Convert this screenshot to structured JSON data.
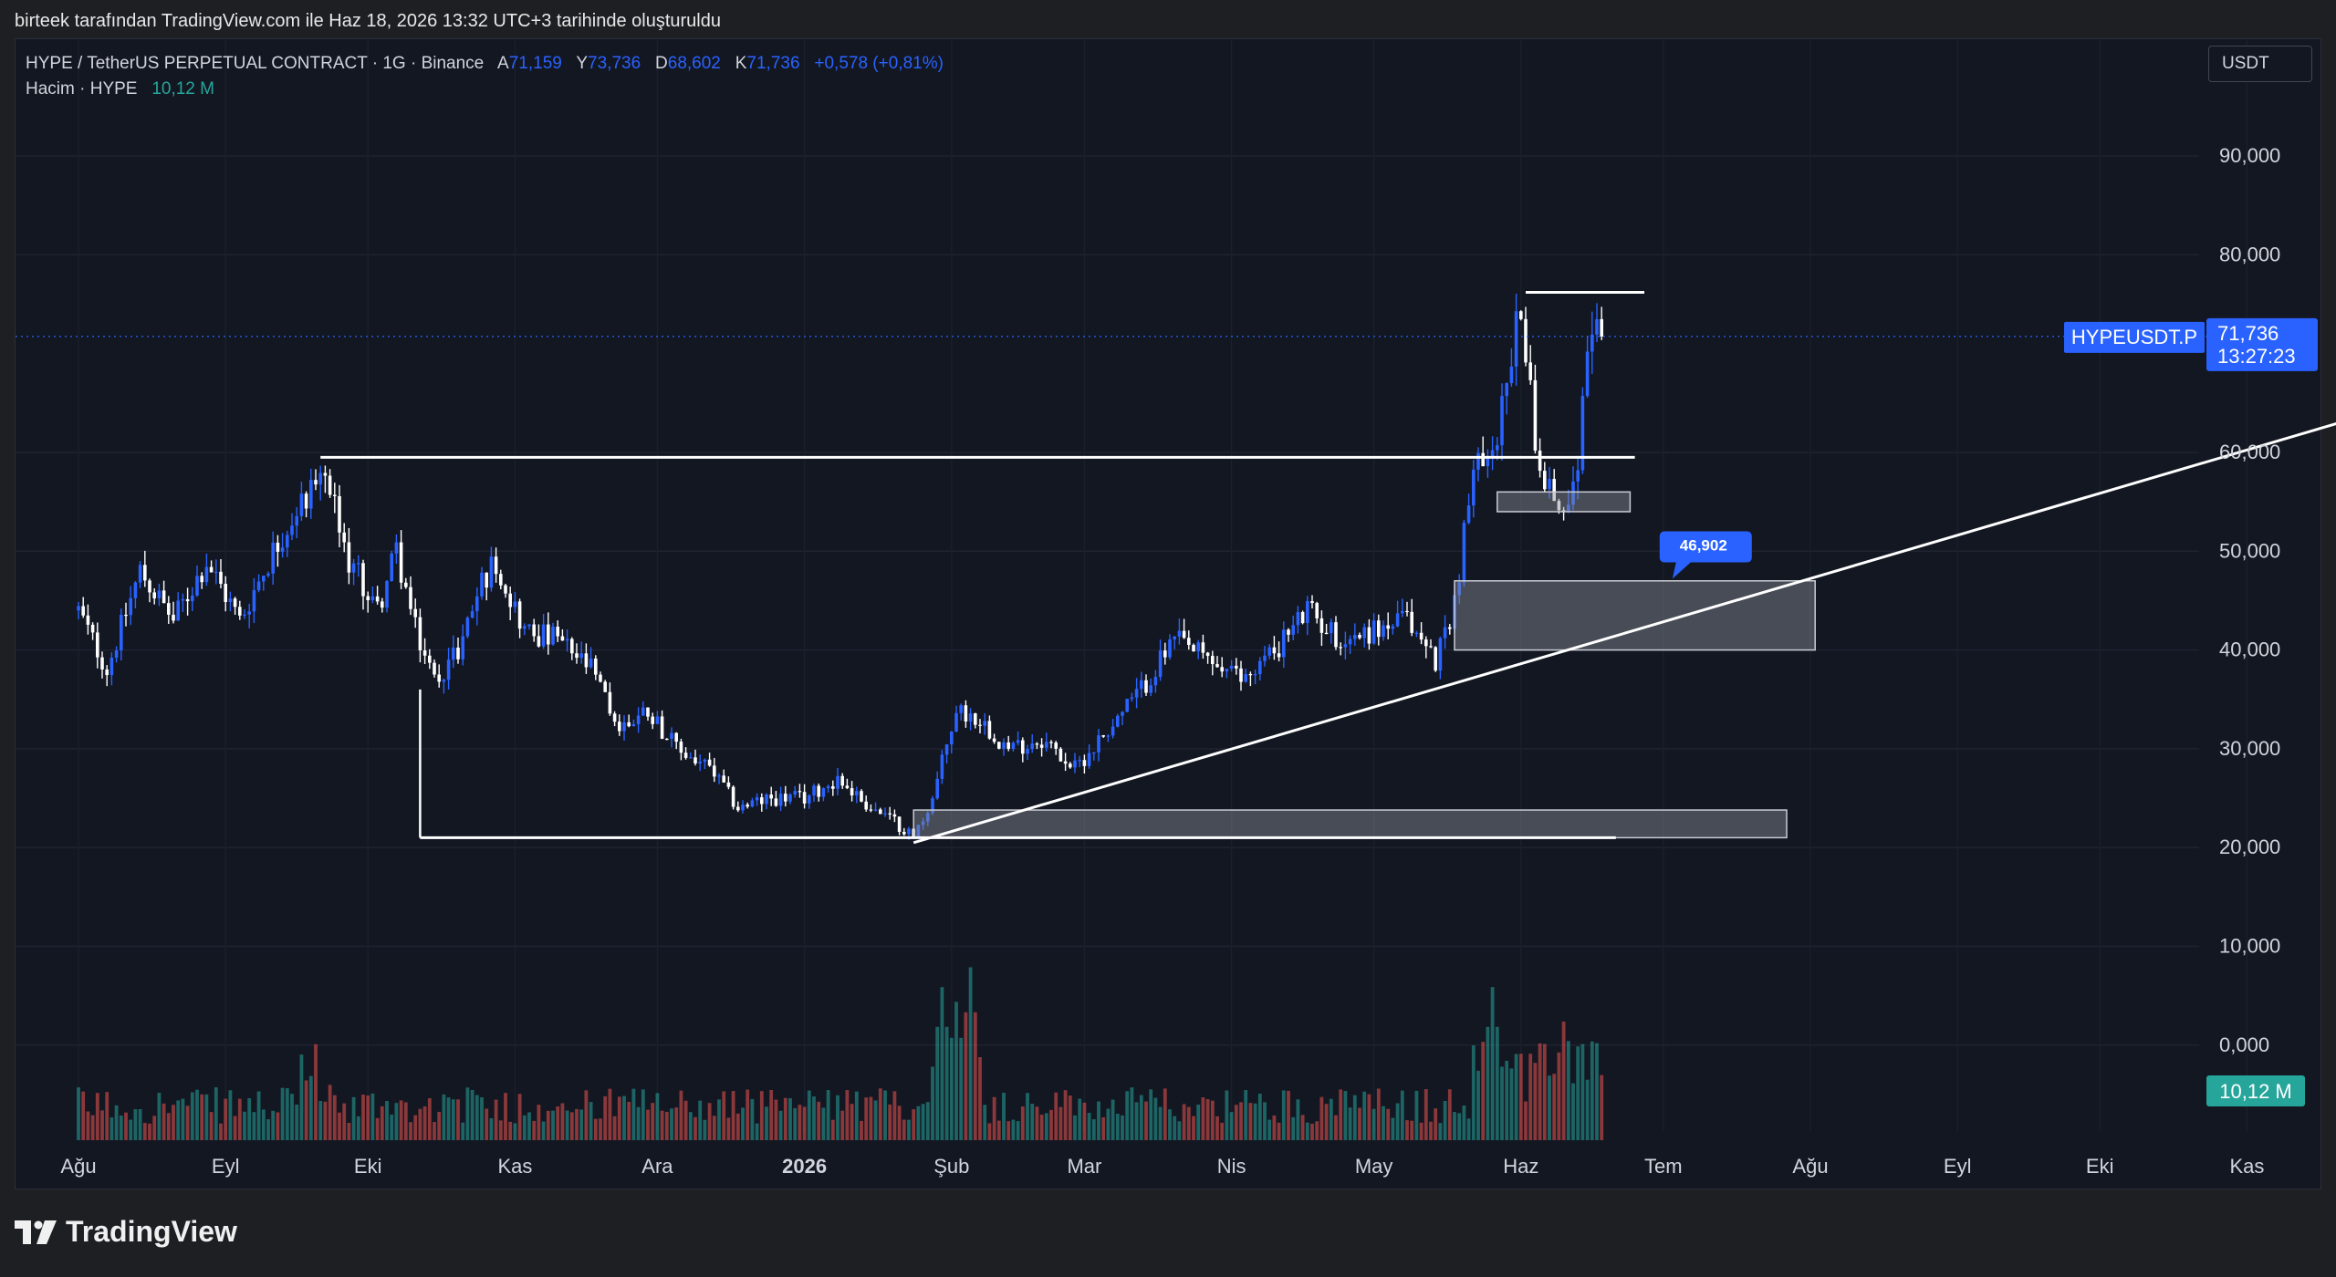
{
  "caption": "birteek tarafından TradingView.com ile Haz 18, 2026 13:32 UTC+3 tarihinde oluşturuldu",
  "legend": {
    "symbol": "HYPE / TetherUS PERPETUAL CONTRACT · 1G · Binance",
    "open_label": "A",
    "open": "71,159",
    "high_label": "Y",
    "high": "73,736",
    "low_label": "D",
    "low": "68,602",
    "close_label": "K",
    "close": "71,736",
    "change": "+0,578 (+0,81%)",
    "volume_label": "Hacim · HYPE",
    "volume": "10,12 M"
  },
  "currency_button": "USDT",
  "price_tag": {
    "symbol": "HYPEUSDT.P",
    "price": "71,736",
    "countdown": "13:27:23"
  },
  "volume_tag": "10,12 M",
  "annotation_label": "46,902",
  "brand": "TradingView",
  "colors": {
    "background": "#131722",
    "up": "#2962ff",
    "down": "#ffffff",
    "vol_up": "#26a69a",
    "vol_down": "#ef5350",
    "accent": "#2962ff"
  },
  "chart_data": {
    "type": "candlestick",
    "y_ticks": [
      "90,000",
      "80,000",
      "60,000",
      "50,000",
      "40,000",
      "30,000",
      "20,000",
      "10,000",
      "0,000"
    ],
    "x_ticks": [
      "Ağu",
      "Eyl",
      "Eki",
      "Kas",
      "Ara",
      "2026",
      "Şub",
      "Mar",
      "Nis",
      "May",
      "Haz",
      "Tem",
      "Ağu",
      "Eyl",
      "Eki",
      "Kas"
    ],
    "ylim": [
      0,
      100
    ],
    "grid": true,
    "last_price": 71.736,
    "price_path": [
      [
        "2025-08-01",
        44
      ],
      [
        "2025-08-07",
        38
      ],
      [
        "2025-08-14",
        48
      ],
      [
        "2025-08-21",
        43
      ],
      [
        "2025-08-28",
        49
      ],
      [
        "2025-09-04",
        43
      ],
      [
        "2025-09-11",
        50
      ],
      [
        "2025-09-18",
        56
      ],
      [
        "2025-09-22",
        58
      ],
      [
        "2025-09-26",
        50
      ],
      [
        "2025-10-03",
        44
      ],
      [
        "2025-10-07",
        50
      ],
      [
        "2025-10-11",
        42
      ],
      [
        "2025-10-15",
        37
      ],
      [
        "2025-10-20",
        40
      ],
      [
        "2025-10-25",
        47
      ],
      [
        "2025-10-28",
        49
      ],
      [
        "2025-11-03",
        42
      ],
      [
        "2025-11-10",
        41
      ],
      [
        "2025-11-17",
        38
      ],
      [
        "2025-11-23",
        32
      ],
      [
        "2025-11-29",
        34
      ],
      [
        "2025-12-05",
        30
      ],
      [
        "2025-12-12",
        28
      ],
      [
        "2025-12-18",
        24
      ],
      [
        "2025-12-25",
        25
      ],
      [
        "2026-01-01",
        25
      ],
      [
        "2026-01-08",
        27
      ],
      [
        "2026-01-15",
        24
      ],
      [
        "2026-01-22",
        22
      ],
      [
        "2026-01-24",
        21
      ],
      [
        "2026-01-28",
        25
      ],
      [
        "2026-02-02",
        34
      ],
      [
        "2026-02-07",
        33
      ],
      [
        "2026-02-13",
        30
      ],
      [
        "2026-02-20",
        31
      ],
      [
        "2026-02-27",
        28
      ],
      [
        "2026-03-06",
        32
      ],
      [
        "2026-03-13",
        36
      ],
      [
        "2026-03-20",
        41
      ],
      [
        "2026-03-27",
        39
      ],
      [
        "2026-04-03",
        37
      ],
      [
        "2026-04-10",
        40
      ],
      [
        "2026-04-17",
        44
      ],
      [
        "2026-04-24",
        41
      ],
      [
        "2026-05-01",
        42
      ],
      [
        "2026-05-08",
        43
      ],
      [
        "2026-05-14",
        39
      ],
      [
        "2026-05-18",
        45
      ],
      [
        "2026-05-22",
        58
      ],
      [
        "2026-05-27",
        62
      ],
      [
        "2026-06-01",
        75
      ],
      [
        "2026-06-04",
        62
      ],
      [
        "2026-06-07",
        56
      ],
      [
        "2026-06-10",
        54
      ],
      [
        "2026-06-13",
        60
      ],
      [
        "2026-06-16",
        73
      ],
      [
        "2026-06-18",
        71.7
      ]
    ],
    "volume_spikes": [
      [
        "2026-01-30",
        15.5
      ],
      [
        "2026-02-02",
        14
      ],
      [
        "2026-02-05",
        17.5
      ],
      [
        "2026-05-26",
        15.5
      ],
      [
        "2026-06-10",
        12
      ],
      [
        "2026-06-16",
        3.5
      ]
    ],
    "drawings": {
      "horizontal_lines": [
        {
          "from": "2025-09-21",
          "to": "2026-06-25",
          "y": 59.5
        },
        {
          "from": "2025-10-12",
          "to": "2026-06-21",
          "y": 21
        },
        {
          "from": "2026-06-02",
          "to": "2026-06-27",
          "y": 76.2
        }
      ],
      "trendline": {
        "from": [
          "2026-01-24",
          20.5
        ],
        "to": [
          "2026-11-24",
          63.5
        ]
      },
      "zones": [
        {
          "from": "2026-01-24",
          "to": "2026-07-27",
          "y_low": 21,
          "y_high": 23.8
        },
        {
          "from": "2026-05-27",
          "to": "2026-06-24",
          "y_low": 54,
          "y_high": 56
        },
        {
          "from": "2026-05-18",
          "to": "2026-08-02",
          "y_low": 40,
          "y_high": 47
        }
      ]
    }
  }
}
